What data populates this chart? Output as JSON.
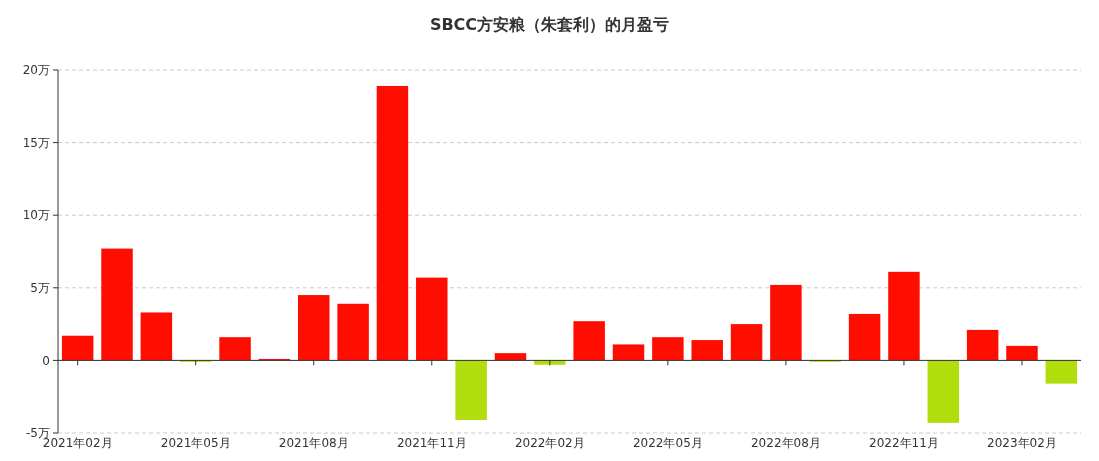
{
  "chart_data": {
    "type": "bar",
    "title": "SBCC方安粮（朱套利）的月盈亏",
    "categories": [
      "2021年02月",
      null,
      null,
      "2021年05月",
      null,
      null,
      "2021年08月",
      null,
      null,
      "2021年11月",
      null,
      null,
      "2022年02月",
      null,
      null,
      "2022年05月",
      null,
      null,
      "2022年08月",
      null,
      null,
      "2022年11月",
      null,
      null,
      "2023年02月",
      null
    ],
    "values": [
      1.7,
      7.7,
      3.3,
      -0.1,
      1.6,
      0.1,
      4.5,
      3.9,
      18.9,
      5.7,
      -4.1,
      0.5,
      -0.3,
      2.7,
      1.1,
      1.6,
      1.4,
      2.5,
      5.2,
      -0.1,
      3.2,
      6.1,
      -4.3,
      2.1,
      1.0,
      -1.6
    ],
    "colors": [
      "#ff0d00",
      "#ff0d00",
      "#ff0d00",
      "#b0dd0c",
      "#ff0d00",
      "#ff0d00",
      "#ff0d00",
      "#ff0d00",
      "#ff0d00",
      "#ff0d00",
      "#b0dd0c",
      "#ff0d00",
      "#b0dd0c",
      "#ff0d00",
      "#ff0d00",
      "#ff0d00",
      "#ff0d00",
      "#ff0d00",
      "#ff0d00",
      "#b0dd0c",
      "#ff0d00",
      "#ff0d00",
      "#b0dd0c",
      "#ff0d00",
      "#ff0d00",
      "#b0dd0c"
    ],
    "ylim": [
      -5,
      20
    ],
    "yticks": [
      {
        "value": -5,
        "label": "-5万"
      },
      0,
      {
        "value": 5,
        "label": "5万"
      },
      {
        "value": 10,
        "label": "10万"
      },
      {
        "value": 15,
        "label": "15万"
      },
      {
        "value": 20,
        "label": "20万"
      }
    ],
    "grid": "y"
  }
}
